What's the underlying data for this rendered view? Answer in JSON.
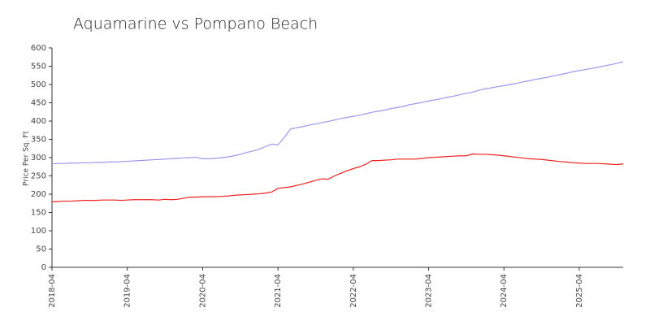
{
  "chart_data": {
    "type": "line",
    "title": "Aquamarine vs Pompano Beach",
    "y_label": "Price Per Sq. Ft",
    "x": [
      "2018-04",
      "2018-05",
      "2018-06",
      "2018-07",
      "2018-08",
      "2018-09",
      "2018-10",
      "2018-11",
      "2018-12",
      "2019-01",
      "2019-02",
      "2019-03",
      "2019-04",
      "2019-05",
      "2019-06",
      "2019-07",
      "2019-08",
      "2019-09",
      "2019-10",
      "2019-11",
      "2019-12",
      "2020-01",
      "2020-02",
      "2020-03",
      "2020-04",
      "2020-05",
      "2020-06",
      "2020-07",
      "2020-08",
      "2020-09",
      "2020-10",
      "2020-11",
      "2020-12",
      "2021-01",
      "2021-02",
      "2021-03",
      "2021-04",
      "2021-05",
      "2021-06",
      "2021-07",
      "2021-08",
      "2021-09",
      "2021-10",
      "2021-11",
      "2021-12",
      "2022-01",
      "2022-02",
      "2022-03",
      "2022-04",
      "2022-05",
      "2022-06",
      "2022-07",
      "2022-08",
      "2022-09",
      "2022-10",
      "2022-11",
      "2022-12",
      "2023-01",
      "2023-02",
      "2023-03",
      "2023-04",
      "2023-05",
      "2023-06",
      "2023-07",
      "2023-08",
      "2023-09",
      "2023-10",
      "2023-11",
      "2023-12",
      "2024-01",
      "2024-02",
      "2024-03",
      "2024-04",
      "2024-05",
      "2024-06",
      "2024-07",
      "2024-08",
      "2024-09",
      "2024-10",
      "2024-11",
      "2024-12",
      "2025-01",
      "2025-02",
      "2025-03",
      "2025-04",
      "2025-05",
      "2025-06",
      "2025-07",
      "2025-08",
      "2025-09",
      "2025-10",
      "2025-11"
    ],
    "series": [
      {
        "color": "#9999ee",
        "values": [
          283,
          284,
          284,
          285,
          285,
          286,
          286,
          287,
          287,
          288,
          288,
          289,
          290,
          291,
          292,
          293,
          294,
          295,
          296,
          297,
          298,
          299,
          300,
          301,
          297,
          297,
          298,
          300,
          302,
          305,
          309,
          314,
          318,
          323,
          330,
          337,
          335,
          355,
          378,
          382,
          385,
          389,
          392,
          396,
          399,
          403,
          407,
          410,
          413,
          416,
          420,
          424,
          427,
          430,
          434,
          437,
          440,
          445,
          448,
          451,
          455,
          458,
          461,
          465,
          468,
          472,
          476,
          479,
          484,
          488,
          491,
          494,
          497,
          500,
          503,
          507,
          510,
          514,
          517,
          520,
          524,
          527,
          531,
          535,
          538,
          541,
          544,
          547,
          551,
          554,
          558,
          562
        ]
      },
      {
        "color": "#ee2222",
        "values": [
          179,
          180,
          181,
          181,
          182,
          183,
          183,
          183,
          184,
          184,
          184,
          183,
          184,
          185,
          185,
          185,
          185,
          184,
          186,
          185,
          186,
          189,
          192,
          192,
          193,
          193,
          193,
          194,
          195,
          197,
          198,
          199,
          200,
          201,
          203,
          206,
          216,
          218,
          220,
          224,
          228,
          233,
          238,
          242,
          241,
          250,
          257,
          264,
          270,
          275,
          282,
          292,
          292,
          293,
          294,
          296,
          296,
          296,
          296,
          298,
          300,
          301,
          302,
          303,
          304,
          305,
          305,
          310,
          309,
          309,
          308,
          307,
          305,
          303,
          301,
          299,
          297,
          296,
          295,
          293,
          291,
          289,
          288,
          286,
          285,
          284,
          284,
          284,
          283,
          282,
          281,
          283
        ]
      }
    ],
    "xlim": [
      "2018-04",
      "2025-11"
    ],
    "xticks": [
      "2018-04",
      "2019-04",
      "2020-04",
      "2021-04",
      "2022-04",
      "2023-04",
      "2024-04",
      "2025-04"
    ],
    "ylim": [
      0,
      600
    ],
    "yticks": [
      0,
      50,
      100,
      150,
      200,
      250,
      300,
      350,
      400,
      450,
      500,
      550,
      600
    ]
  }
}
